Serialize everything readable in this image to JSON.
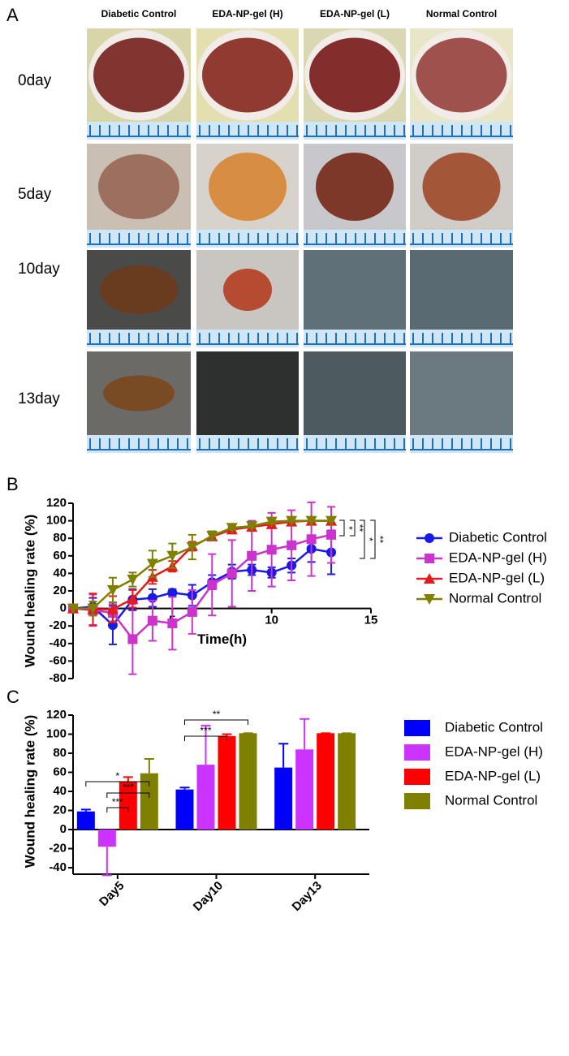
{
  "panel_labels": [
    "A",
    "B",
    "C"
  ],
  "photo_grid": {
    "columns": [
      "Diabetic Control",
      "EDA-NP-gel (H)",
      "EDA-NP-gel (L)",
      "Normal Control"
    ],
    "rows": [
      "0day",
      "5day",
      "10day",
      "13day"
    ]
  },
  "chart_data": [
    {
      "type": "line",
      "y_label": "Wound healing rate (%)",
      "x_label": "Time(h)",
      "x": [
        0,
        1,
        2,
        3,
        4,
        5,
        6,
        7,
        8,
        9,
        10,
        11,
        12,
        13
      ],
      "xlim": [
        0,
        15
      ],
      "xticks": [
        5,
        10,
        15
      ],
      "ylim": [
        -80,
        120
      ],
      "yticks": [
        -80,
        -60,
        -40,
        -20,
        0,
        20,
        40,
        60,
        80,
        100,
        120
      ],
      "series": [
        {
          "name": "Diabetic Control",
          "color": "#1a1ae6",
          "marker": "circle",
          "values": [
            0,
            2,
            -19,
            10,
            12,
            18,
            15,
            30,
            42,
            44,
            41,
            49,
            68,
            64
          ],
          "errors": [
            0,
            10,
            22,
            12,
            10,
            4,
            12,
            8,
            8,
            6,
            6,
            8,
            15,
            25
          ]
        },
        {
          "name": "EDA-NP-gel (H)",
          "color": "#cc33cc",
          "marker": "square",
          "values": [
            0,
            -2,
            -5,
            -35,
            -14,
            -17,
            -4,
            27,
            40,
            60,
            67,
            72,
            79,
            84
          ],
          "errors": [
            0,
            18,
            10,
            40,
            23,
            30,
            25,
            35,
            38,
            40,
            42,
            40,
            42,
            32
          ]
        },
        {
          "name": "EDA-NP-gel (L)",
          "color": "#e41a1c",
          "marker": "triangle",
          "values": [
            0,
            -1,
            -1,
            11,
            36,
            48,
            71,
            82,
            90,
            93,
            96,
            99,
            100,
            100
          ],
          "errors": [
            0,
            18,
            15,
            10,
            8,
            6,
            5,
            3,
            2,
            2,
            2,
            1,
            0,
            0
          ]
        },
        {
          "name": "Normal Control",
          "color": "#808000",
          "marker": "triangle-down",
          "values": [
            0,
            0,
            21,
            33,
            51,
            60,
            70,
            83,
            92,
            94,
            99,
            100,
            100,
            100
          ],
          "errors": [
            0,
            8,
            14,
            8,
            15,
            14,
            14,
            5,
            2,
            2,
            2,
            1,
            0,
            0
          ]
        }
      ],
      "annotations": [
        "*",
        "**",
        "*",
        "**"
      ]
    },
    {
      "type": "bar",
      "y_label": "Wound healing rate (%)",
      "categories": [
        "Day5",
        "Day10",
        "Day13"
      ],
      "ylim": [
        -40,
        120
      ],
      "yticks": [
        -40,
        -20,
        0,
        20,
        40,
        60,
        80,
        100,
        120
      ],
      "series": [
        {
          "name": "Diabetic Control",
          "color": "#0000ff",
          "values": [
            19,
            42,
            65
          ],
          "errors": [
            2,
            2,
            25
          ]
        },
        {
          "name": "EDA-NP-gel (H)",
          "color": "#cc33ff",
          "values": [
            -18,
            68,
            84
          ],
          "errors": [
            30,
            41,
            32
          ]
        },
        {
          "name": "EDA-NP-gel (L)",
          "color": "#ff0000",
          "values": [
            50,
            98,
            101
          ],
          "errors": [
            5,
            2,
            0
          ]
        },
        {
          "name": "Normal Control",
          "color": "#808000",
          "values": [
            59,
            101,
            101
          ],
          "errors": [
            15,
            0,
            0
          ]
        }
      ],
      "annotations": [
        "*",
        "***",
        "***",
        "**",
        "***"
      ]
    }
  ]
}
